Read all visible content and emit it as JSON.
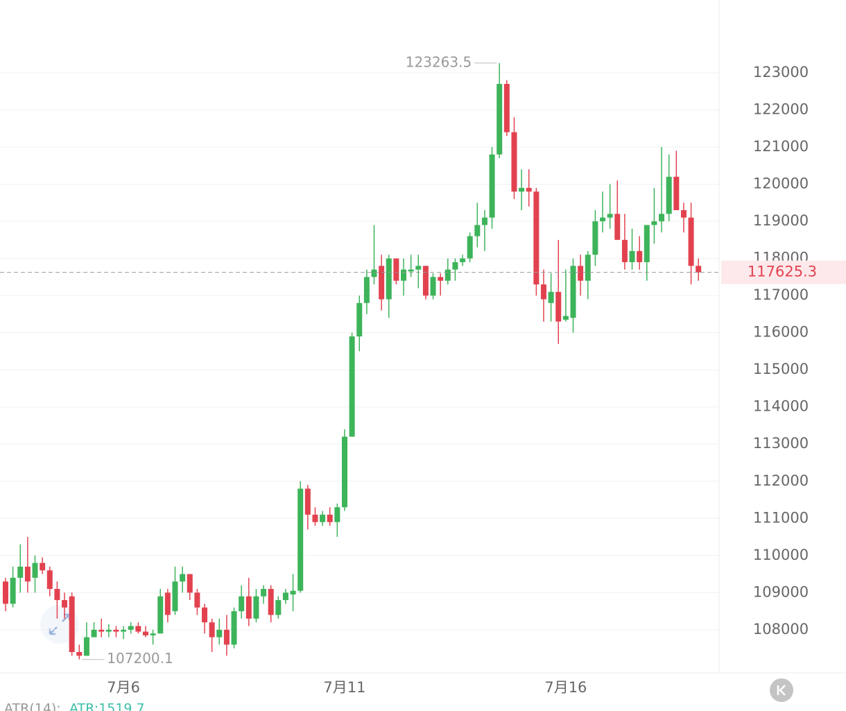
{
  "chart_data": {
    "type": "candlestick",
    "categories": [
      null,
      null,
      null,
      null,
      null,
      null,
      null,
      null,
      null,
      null,
      null,
      null,
      null,
      null,
      null,
      null,
      "7月6",
      null,
      null,
      null,
      null,
      null,
      null,
      null,
      null,
      null,
      null,
      null,
      null,
      null,
      null,
      null,
      null,
      null,
      null,
      null,
      null,
      null,
      null,
      null,
      null,
      null,
      null,
      null,
      null,
      null,
      "7月11",
      null,
      null,
      null,
      null,
      null,
      null,
      null,
      null,
      null,
      null,
      null,
      null,
      null,
      null,
      null,
      null,
      null,
      null,
      null,
      null,
      null,
      null,
      null,
      null,
      null,
      null,
      null,
      null,
      null,
      "7月16",
      null,
      null,
      null,
      null,
      null,
      null,
      null,
      null,
      null,
      null,
      null,
      null,
      null,
      null,
      null,
      null,
      null,
      null
    ],
    "open": [
      109300,
      108700,
      109400,
      109700,
      109400,
      109800,
      109600,
      109100,
      108800,
      108900,
      107400,
      107300,
      107800,
      108000,
      107950,
      108000,
      107950,
      108000,
      108100,
      107950,
      107850,
      107900,
      109000,
      108500,
      109300,
      109500,
      109000,
      108600,
      108200,
      107800,
      108000,
      107600,
      108500,
      108900,
      108300,
      108900,
      109100,
      108400,
      108800,
      108950,
      109050,
      111800,
      111100,
      110900,
      111100,
      110900,
      111300,
      113200,
      115900,
      116800,
      117500,
      117800,
      116900,
      118000,
      117400,
      117650,
      117700,
      117800,
      117000,
      117500,
      117400,
      117700,
      117900,
      118000,
      118600,
      118900,
      119100,
      120800,
      122700,
      121400,
      119800,
      119900,
      119800,
      117300,
      116800,
      117100,
      116350,
      116400,
      117800,
      117400,
      118100,
      119000,
      119100,
      119200,
      118500,
      117900,
      118200,
      117900,
      118900,
      119000,
      119200,
      120200,
      119300,
      119100,
      117800
    ],
    "high": [
      109400,
      109700,
      110300,
      110500,
      110000,
      109950,
      109700,
      109300,
      109000,
      109000,
      107600,
      108200,
      108200,
      108300,
      108150,
      108100,
      108100,
      108200,
      108200,
      108100,
      108000,
      109100,
      109100,
      109700,
      109700,
      109500,
      109100,
      108700,
      108300,
      108300,
      108400,
      108600,
      109200,
      109400,
      109100,
      109200,
      109200,
      108900,
      109100,
      109500,
      112000,
      111900,
      111300,
      111200,
      111300,
      111400,
      113400,
      116000,
      117000,
      117700,
      118900,
      118100,
      118100,
      118000,
      118000,
      118100,
      118100,
      117800,
      117600,
      117600,
      118000,
      118000,
      118100,
      118700,
      119500,
      119300,
      121000,
      123263.5,
      122800,
      121800,
      120400,
      120400,
      119900,
      117700,
      117600,
      118500,
      117700,
      118000,
      118100,
      118200,
      119300,
      119800,
      120000,
      120100,
      119200,
      118800,
      118600,
      118900,
      119900,
      121000,
      120800,
      120900,
      119500,
      119500,
      118000
    ],
    "low": [
      108500,
      108600,
      109000,
      109000,
      109000,
      109500,
      108900,
      108300,
      108300,
      107300,
      107200.1,
      107300,
      107800,
      107800,
      107800,
      107800,
      107750,
      107900,
      107900,
      107800,
      107600,
      107900,
      108200,
      108400,
      109000,
      108800,
      108400,
      107900,
      107400,
      107600,
      107300,
      107500,
      108300,
      108100,
      108200,
      108700,
      108200,
      108300,
      108700,
      108500,
      109000,
      110700,
      110800,
      110800,
      110800,
      110500,
      111200,
      113200,
      115500,
      116500,
      117300,
      116600,
      116400,
      117300,
      117000,
      117500,
      117200,
      116900,
      116900,
      117000,
      117300,
      117400,
      117800,
      117900,
      118300,
      118200,
      118800,
      120700,
      121300,
      119600,
      119300,
      119400,
      117000,
      116300,
      116300,
      115700,
      116300,
      116000,
      117000,
      116900,
      117800,
      118700,
      118800,
      118500,
      117700,
      117700,
      117700,
      117400,
      118400,
      118700,
      119000,
      119300,
      118700,
      117300,
      117400
    ],
    "close": [
      108700,
      109400,
      109700,
      109300,
      109800,
      109600,
      109100,
      108800,
      108600,
      107400,
      107300,
      107800,
      108000,
      107950,
      108000,
      107950,
      108000,
      108100,
      107950,
      107850,
      107900,
      108900,
      108400,
      109300,
      109500,
      109000,
      108600,
      108200,
      107800,
      108000,
      107600,
      108500,
      108900,
      108300,
      108900,
      109100,
      108400,
      108800,
      109000,
      109050,
      111800,
      111100,
      110900,
      111100,
      110900,
      111300,
      113200,
      115900,
      116800,
      117500,
      117700,
      116900,
      118000,
      117400,
      117700,
      117700,
      117800,
      117000,
      117500,
      117400,
      117700,
      117900,
      118000,
      118600,
      118900,
      119100,
      120800,
      122700,
      121400,
      119800,
      119900,
      119800,
      117300,
      116900,
      117100,
      116300,
      116450,
      117800,
      117400,
      118100,
      119000,
      119100,
      119200,
      118500,
      117900,
      118200,
      117900,
      118900,
      119000,
      119200,
      120200,
      119300,
      119100,
      117800,
      117625.3
    ],
    "up_color": "#3db45a",
    "down_color": "#e2424f",
    "ylim": [
      106840,
      124960
    ],
    "yticks": [
      108000,
      109000,
      110000,
      111000,
      112000,
      113000,
      114000,
      115000,
      116000,
      117000,
      118000,
      119000,
      120000,
      121000,
      122000,
      123000
    ],
    "grid": true,
    "indicator_name": "ATR(14):",
    "indicator": {
      "value": 1519.7,
      "label": "ATR:1519.7"
    }
  }
}
